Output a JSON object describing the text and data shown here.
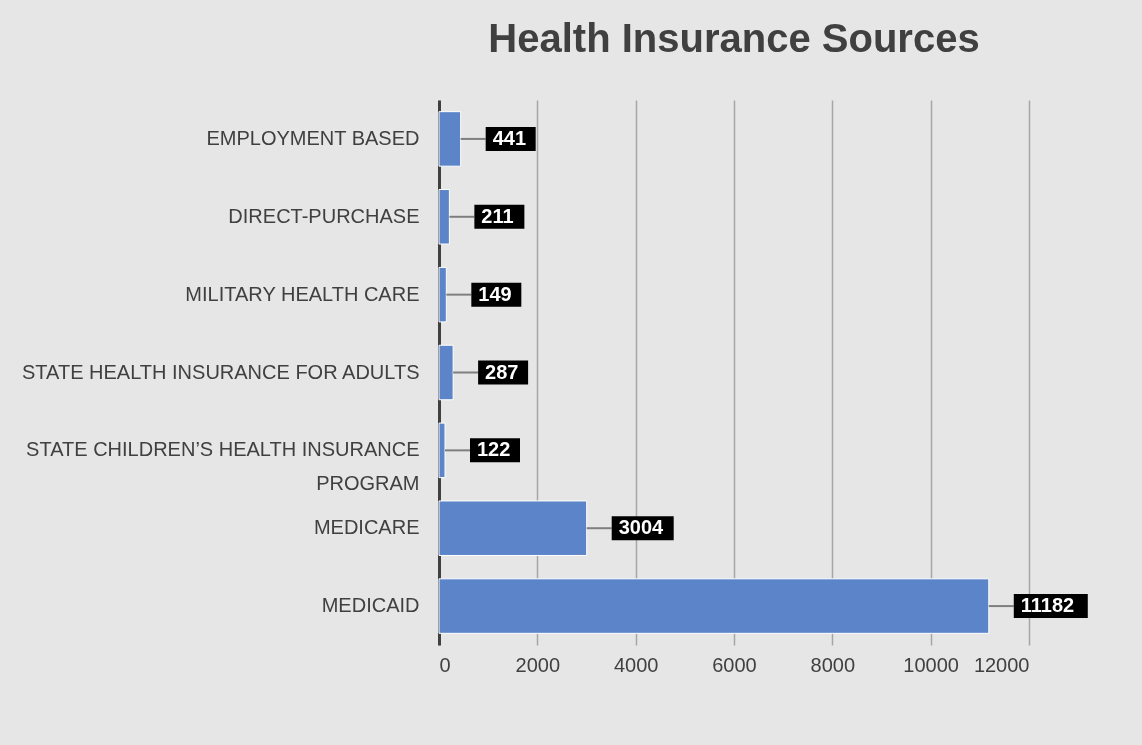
{
  "chart_data": {
    "type": "bar",
    "orientation": "horizontal",
    "title": "Health Insurance Sources",
    "categories": [
      "EMPLOYMENT BASED",
      "DIRECT-PURCHASE",
      "MILITARY HEALTH CARE",
      "STATE HEALTH INSURANCE FOR ADULTS",
      "STATE CHILDREN’S HEALTH INSURANCE PROGRAM",
      "MEDICARE",
      "MEDICAID"
    ],
    "values": [
      441,
      211,
      149,
      287,
      122,
      3004,
      11182
    ],
    "color": "#5b84c9",
    "xlim": [
      0,
      12000
    ],
    "xticks": [
      0,
      2000,
      4000,
      6000,
      8000,
      10000,
      12000
    ],
    "grid": "x",
    "data_labels": true
  }
}
